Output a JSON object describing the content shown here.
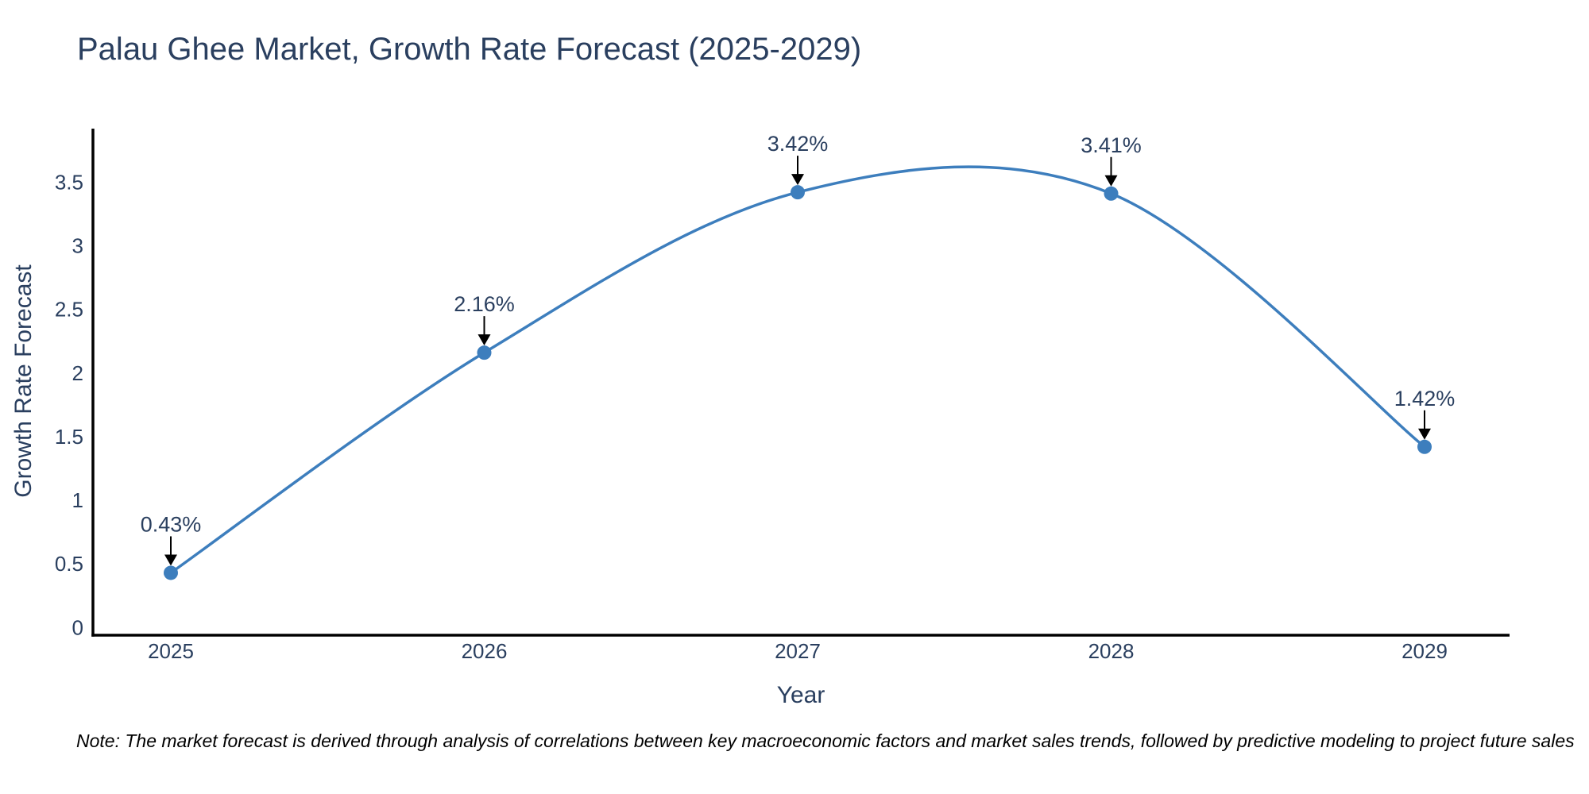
{
  "page": {
    "title": "Palau Ghee Market, Growth Rate Forecast (2025-2029)",
    "note": "Note: The market forecast is derived through analysis of correlations between key macroeconomic factors and market sales trends, followed by predictive modeling to project future sales"
  },
  "chart_data": {
    "type": "line",
    "title": "Palau Ghee Market, Growth Rate Forecast (2025-2029)",
    "x": [
      2025,
      2026,
      2027,
      2028,
      2029
    ],
    "series": [
      {
        "name": "Growth Rate Forecast",
        "values": [
          0.43,
          2.16,
          3.42,
          3.41,
          1.42
        ]
      }
    ],
    "point_labels": [
      "0.43%",
      "2.16%",
      "3.42%",
      "3.41%",
      "1.42%"
    ],
    "xlabel": "Year",
    "ylabel": "Growth Rate Forecast",
    "yticks": [
      0,
      0.5,
      1,
      1.5,
      2,
      2.5,
      3,
      3.5
    ],
    "ylim": [
      -0.06,
      3.92
    ],
    "line_shape": "spline",
    "markers": true,
    "grid": false,
    "legend": "none",
    "annotations_have_arrows": true,
    "colors": {
      "line": "#3d7ebd",
      "marker": "#3d7ebd",
      "axis": "#000000",
      "tick_text": "#2a3f5f",
      "title_text": "#2a3f5f",
      "annotation_text": "#2a3f5f",
      "annotation_arrow": "#000000",
      "note_text": "#000000",
      "background": "#ffffff"
    }
  }
}
